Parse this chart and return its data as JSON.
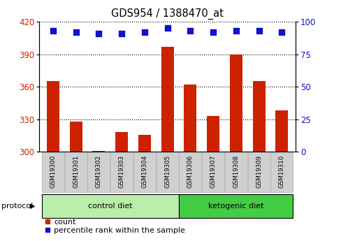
{
  "title": "GDS954 / 1388470_at",
  "samples": [
    "GSM19300",
    "GSM19301",
    "GSM19302",
    "GSM19303",
    "GSM19304",
    "GSM19305",
    "GSM19306",
    "GSM19307",
    "GSM19308",
    "GSM19309",
    "GSM19310"
  ],
  "counts": [
    365,
    328,
    301,
    318,
    316,
    397,
    362,
    333,
    390,
    365,
    338
  ],
  "percentile_ranks": [
    93,
    92,
    91,
    91,
    92,
    95,
    93,
    92,
    93,
    93,
    92
  ],
  "ylim_left": [
    300,
    420
  ],
  "ylim_right": [
    0,
    100
  ],
  "yticks_left": [
    300,
    330,
    360,
    390,
    420
  ],
  "yticks_right": [
    0,
    25,
    50,
    75,
    100
  ],
  "bar_color": "#cc2200",
  "dot_color": "#1111cc",
  "background_color": "#ffffff",
  "plot_bg_color": "#ffffff",
  "control_diet_label": "control diet",
  "ketogenic_diet_label": "ketogenic diet",
  "protocol_label": "protocol",
  "legend_count_label": "count",
  "legend_percentile_label": "percentile rank within the sample",
  "tick_label_color_left": "#cc2200",
  "tick_label_color_right": "#1111cc",
  "bar_width": 0.55,
  "dot_size": 40,
  "dot_marker": "s",
  "n_control": 6,
  "ctrl_color": "#bbeeaa",
  "keto_color": "#44cc44"
}
